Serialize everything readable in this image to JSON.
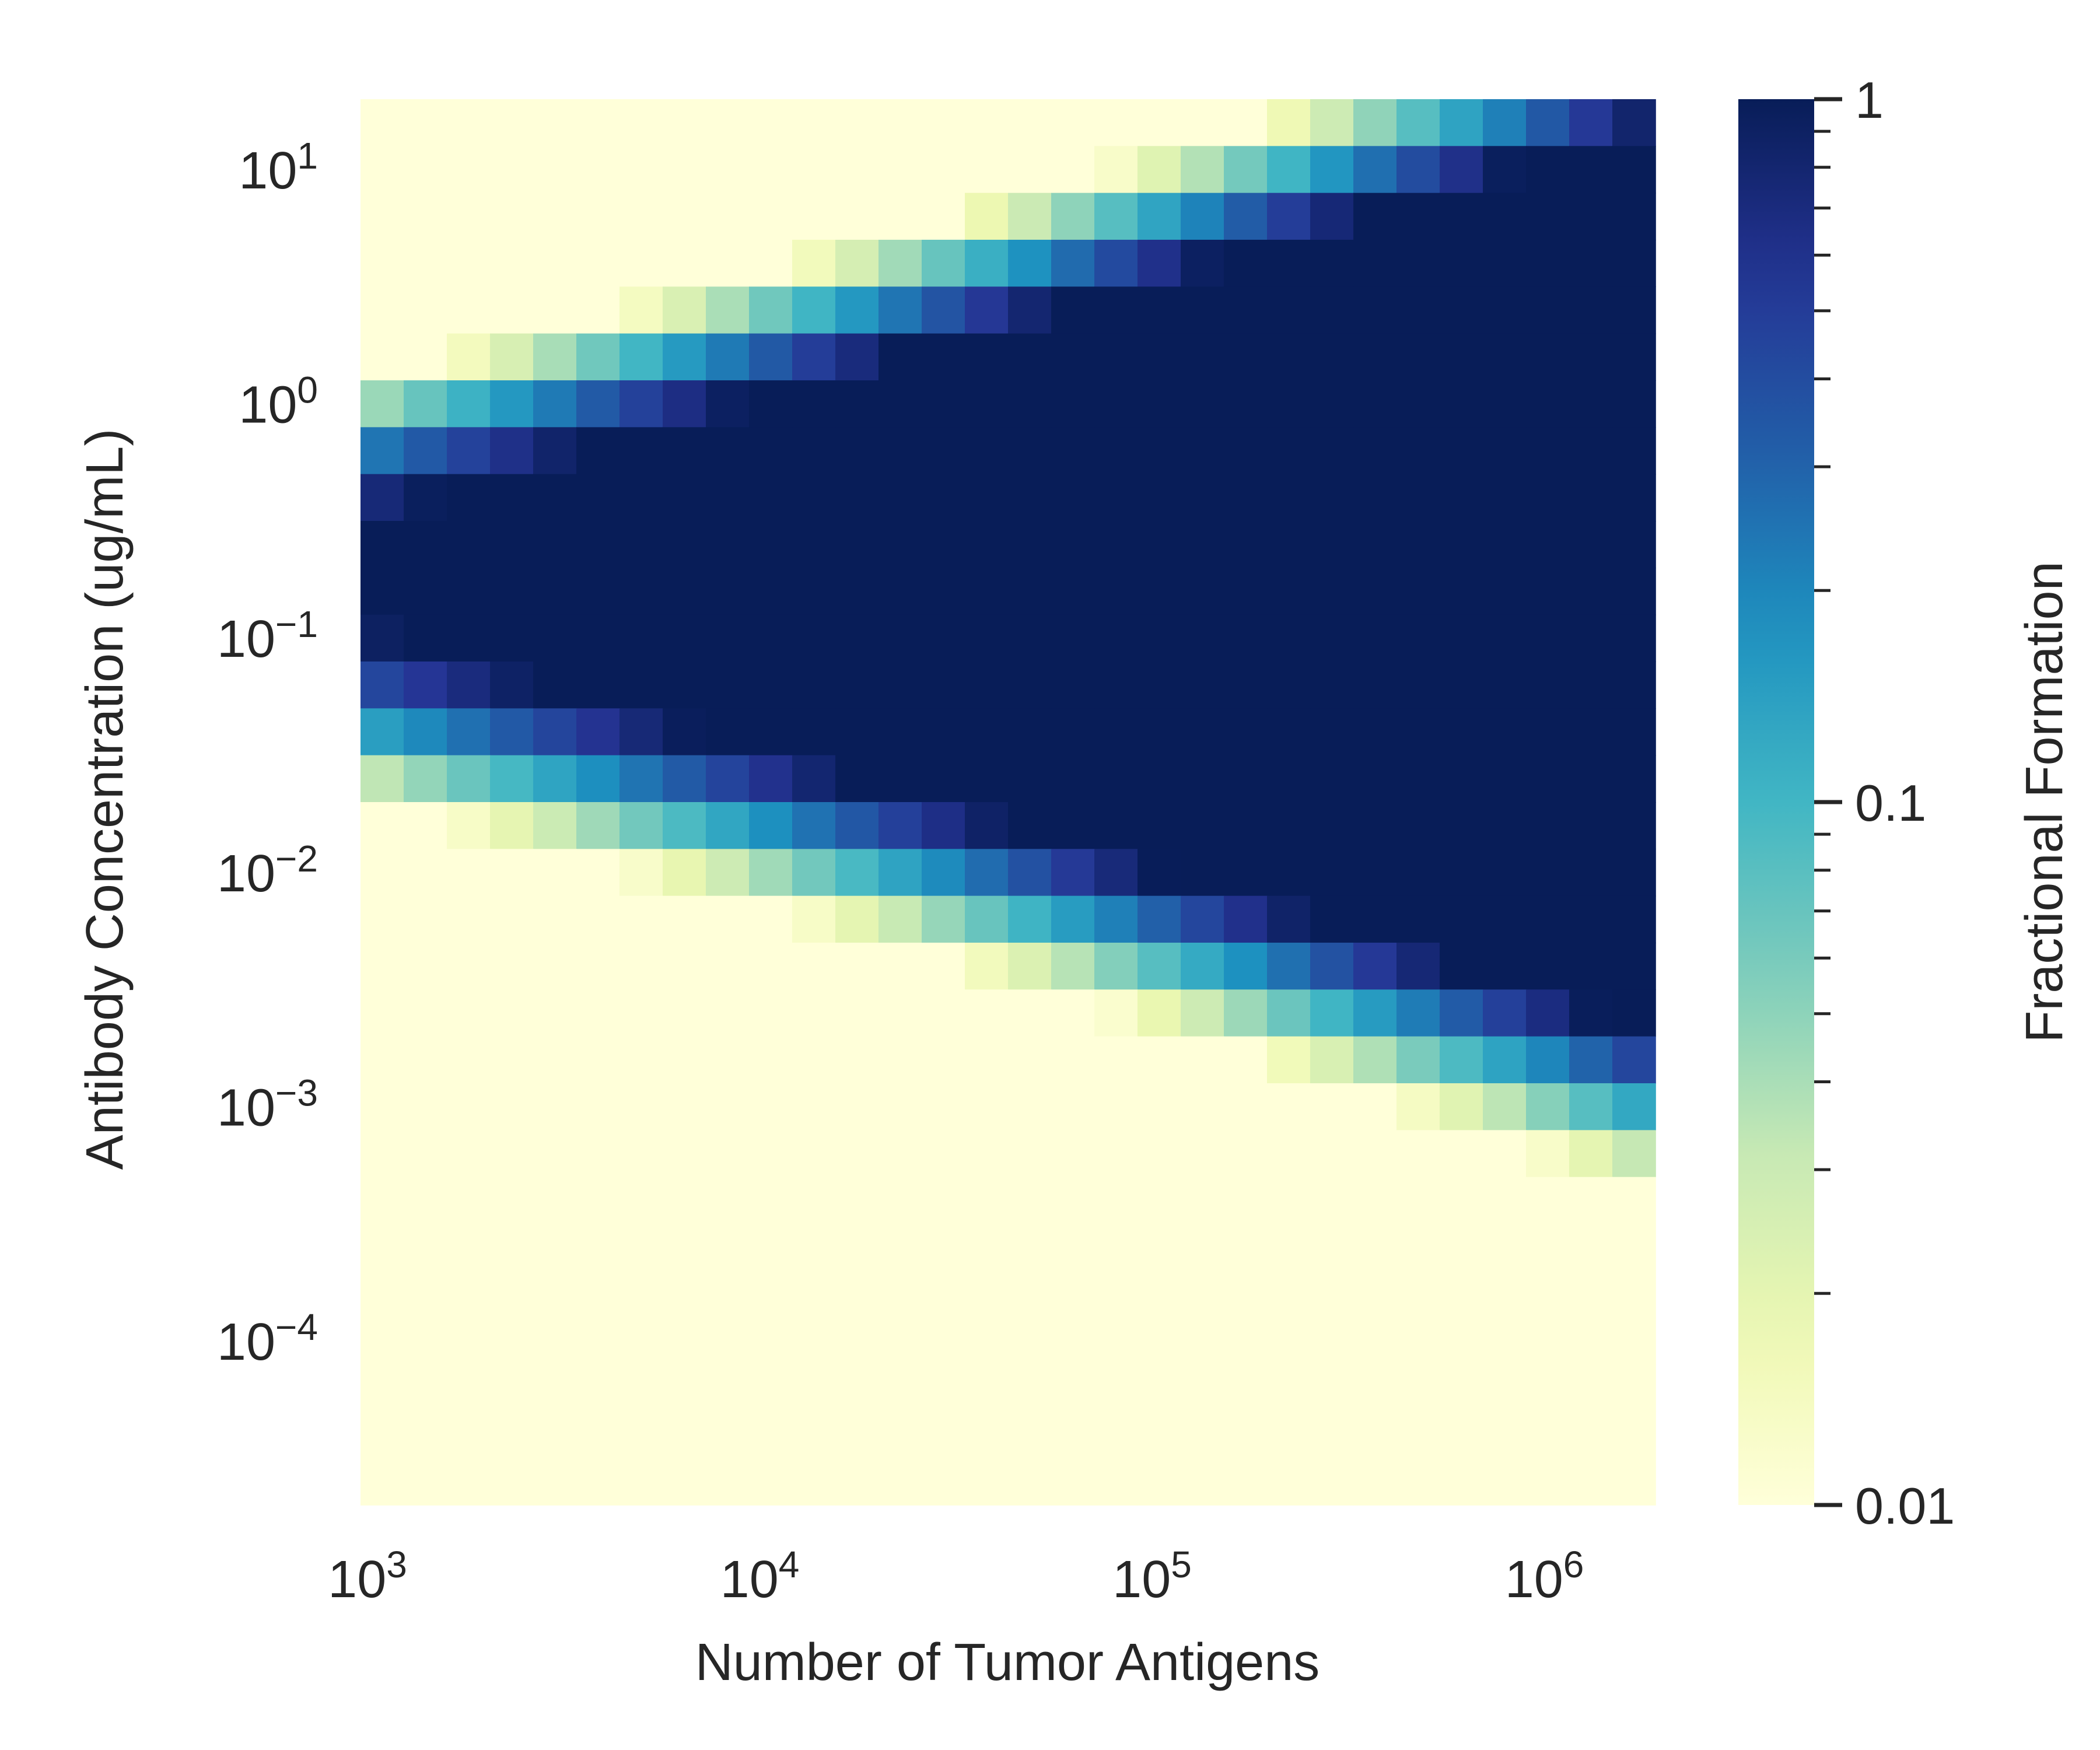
{
  "chart_data": {
    "type": "heatmap",
    "title": "",
    "xlabel": "Number of Tumor Antigens",
    "ylabel": "Antibody Concentration (ug/mL)",
    "colorbar_label": "Fractional Formation",
    "x_scale": "log",
    "y_scale": "log",
    "z_scale": "log",
    "xlim": [
      1000,
      2000000
    ],
    "ylim": [
      2e-05,
      20
    ],
    "zlim": [
      0.01,
      1
    ],
    "colormap": "YlGnBu",
    "colormap_stops": [
      "#ffffd9",
      "#edf8b1",
      "#c7e9b4",
      "#7fcdbb",
      "#41b6c4",
      "#1d91c0",
      "#225ea8",
      "#253494",
      "#081d58"
    ],
    "x_ticks": [
      {
        "value": 1000,
        "base": "10",
        "exp": "3"
      },
      {
        "value": 10000,
        "base": "10",
        "exp": "4"
      },
      {
        "value": 100000,
        "base": "10",
        "exp": "5"
      },
      {
        "value": 1000000,
        "base": "10",
        "exp": "6"
      }
    ],
    "y_ticks": [
      {
        "value": 10,
        "base": "10",
        "exp": "1"
      },
      {
        "value": 1,
        "base": "10",
        "exp": "0"
      },
      {
        "value": 0.1,
        "base": "10",
        "exp": "−1"
      },
      {
        "value": 0.01,
        "base": "10",
        "exp": "−2"
      },
      {
        "value": 0.001,
        "base": "10",
        "exp": "−3"
      },
      {
        "value": 0.0001,
        "base": "10",
        "exp": "−4"
      }
    ],
    "colorbar_ticks": [
      {
        "value": 1,
        "label": "1"
      },
      {
        "value": 0.1,
        "label": "0.1"
      },
      {
        "value": 0.01,
        "label": "0.01"
      }
    ],
    "grid": false,
    "cell_model": {
      "n_x": 30,
      "n_y": 30,
      "description_of_values": "fractional formation peaks (~1) near 10^6 antigens and ~0.3 ug/mL, falls below 0.01 at low antigen counts and low/high concentrations"
    }
  }
}
